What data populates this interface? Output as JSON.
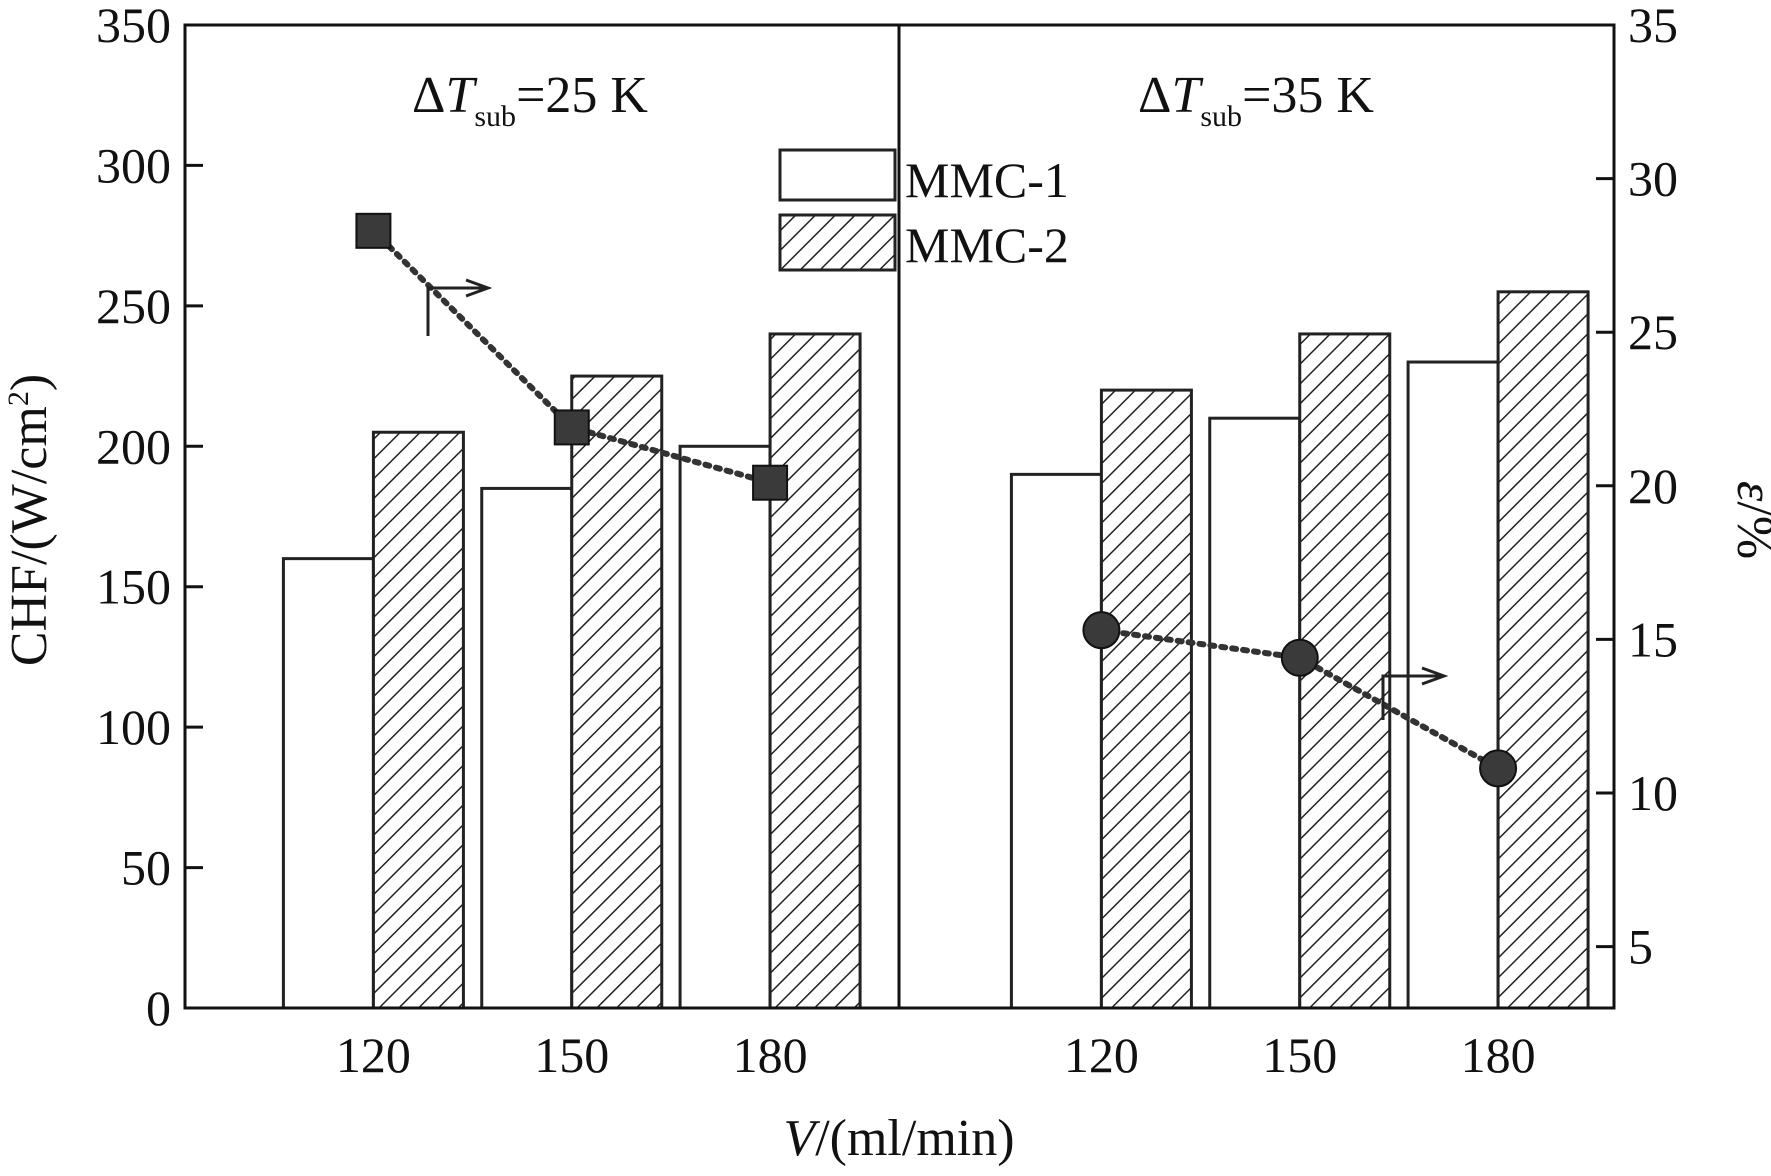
{
  "chart_data": {
    "type": "bar",
    "xlabel_italic": "V",
    "xlabel_rest": "/(ml/min)",
    "ylabel_main": "CHF/(W/cm",
    "ylabel_sup": "2",
    "ylabel_end": ")",
    "y2label_italic": "ε",
    "y2label_rest": "/%",
    "ylim": [
      0,
      350
    ],
    "y2lim": [
      3,
      35
    ],
    "yticks": [
      "0",
      "50",
      "100",
      "150",
      "200",
      "250",
      "300",
      "350"
    ],
    "y2ticks": [
      "5",
      "10",
      "15",
      "20",
      "25",
      "30",
      "35"
    ],
    "groups": [
      {
        "delta": "Δ",
        "T": "T",
        "sub": "sub",
        "rest": "=25 K",
        "categories": [
          "120",
          "150",
          "180"
        ],
        "mmc1": [
          160,
          185,
          200
        ],
        "mmc2": [
          205,
          225,
          240
        ],
        "epsilon": [
          28.3,
          21.9,
          20.1
        ]
      },
      {
        "delta": "Δ",
        "T": "T",
        "sub": "sub",
        "rest": "=35 K",
        "categories": [
          "120",
          "150",
          "180"
        ],
        "mmc1": [
          190,
          210,
          230
        ],
        "mmc2": [
          220,
          240,
          255
        ],
        "epsilon": [
          15.3,
          14.4,
          10.8
        ]
      }
    ],
    "series": [
      {
        "name": "MMC-1",
        "style": "open"
      },
      {
        "name": "MMC-2",
        "style": "hatched"
      }
    ],
    "legend_position": "top-center",
    "colors": {
      "bar_stroke": "#222222",
      "marker": "#3a3a3a",
      "axis": "#111111"
    }
  }
}
